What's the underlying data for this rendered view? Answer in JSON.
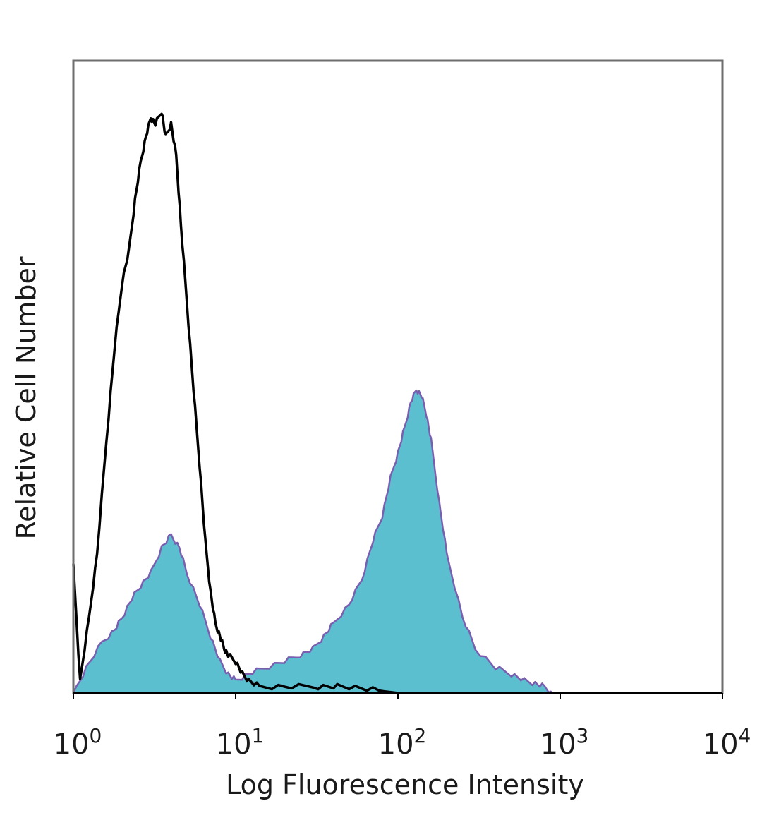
{
  "chart_data": {
    "type": "area",
    "xlabel": "Log Fluorescence Intensity",
    "ylabel": "Relative Cell Number",
    "x_scale": "log",
    "xlim": [
      1,
      10000
    ],
    "ylim": [
      0,
      100
    ],
    "x_ticks": [
      {
        "value": 1,
        "base": "10",
        "exp": "0"
      },
      {
        "value": 10,
        "base": "10",
        "exp": "1"
      },
      {
        "value": 100,
        "base": "10",
        "exp": "2"
      },
      {
        "value": 1000,
        "base": "10",
        "exp": "3"
      },
      {
        "value": 10000,
        "base": "10",
        "exp": "4"
      }
    ],
    "grid": false,
    "legend": "none",
    "colors": {
      "control_line": "#000000",
      "stained_fill": "#5bbfcf",
      "stained_edge": "#7a5fb0"
    },
    "series": [
      {
        "style": "outline",
        "x": [
          1.0,
          1.1,
          1.25,
          1.4,
          1.6,
          1.8,
          2.0,
          2.2,
          2.4,
          2.6,
          2.8,
          3.0,
          3.2,
          3.5,
          3.7,
          4.0,
          4.3,
          4.6,
          5.0,
          5.5,
          6.0,
          6.5,
          7.0,
          7.5,
          8.0,
          8.5,
          9.0,
          10,
          11,
          12,
          14,
          20,
          30,
          40,
          50,
          70,
          100
        ],
        "y": [
          20,
          2,
          12,
          22,
          40,
          55,
          65,
          70,
          78,
          84,
          88,
          91,
          90,
          92,
          88,
          90,
          85,
          74,
          62,
          48,
          36,
          24,
          16,
          11,
          9,
          7,
          6,
          5,
          3,
          2,
          1,
          1,
          1,
          1,
          1,
          0.5,
          0
        ]
      },
      {
        "style": "filled",
        "x": [
          1.0,
          1.2,
          1.5,
          1.8,
          2.0,
          2.3,
          2.6,
          3.0,
          3.5,
          4.0,
          4.5,
          5.0,
          6.0,
          7.0,
          8.0,
          9.0,
          10,
          12,
          15,
          20,
          25,
          30,
          35,
          40,
          50,
          60,
          70,
          80,
          90,
          100,
          110,
          120,
          130,
          140,
          150,
          160,
          180,
          200,
          250,
          300,
          400,
          500,
          600,
          700,
          800,
          900
        ],
        "y": [
          0,
          4,
          8,
          10,
          12,
          15,
          17,
          19,
          23,
          25,
          23,
          19,
          14,
          9,
          5,
          3,
          2,
          3,
          4,
          5,
          6,
          7,
          9,
          11,
          14,
          18,
          24,
          28,
          34,
          38,
          42,
          46,
          48,
          47,
          44,
          40,
          30,
          22,
          12,
          7,
          4,
          3,
          2,
          1.5,
          1,
          0
        ]
      }
    ]
  }
}
